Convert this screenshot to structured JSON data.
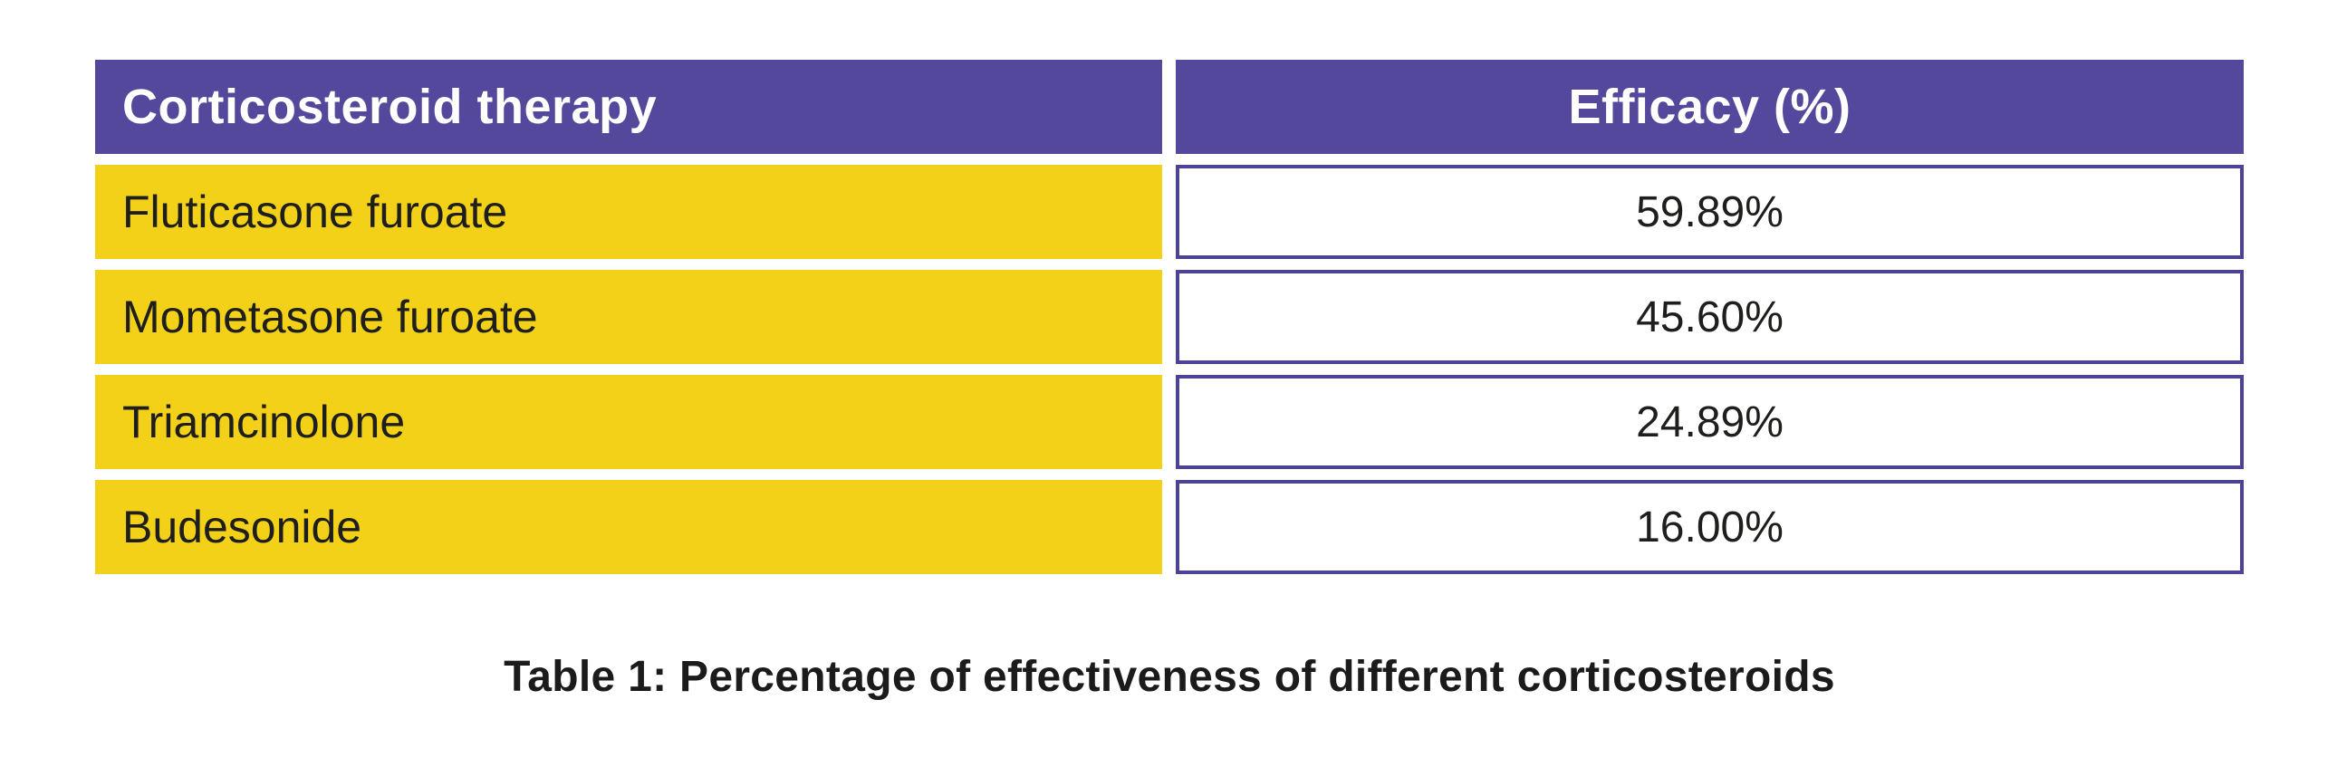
{
  "chart_data": {
    "type": "table",
    "title": "Table 1: Percentage of effectiveness of different corticosteroids",
    "columns": [
      "Corticosteroid therapy",
      "Efficacy (%)"
    ],
    "rows": [
      [
        "Fluticasone furoate",
        "59.89%"
      ],
      [
        "Mometasone furoate",
        "45.60%"
      ],
      [
        "Triamcinolone",
        "24.89%"
      ],
      [
        "Budesonide",
        "16.00%"
      ]
    ],
    "efficacy_values_percent": [
      59.89,
      45.6,
      24.89,
      16.0
    ]
  },
  "table": {
    "header": {
      "therapy": "Corticosteroid therapy",
      "efficacy": "Efficacy (%)"
    },
    "rows": [
      {
        "therapy": "Fluticasone furoate",
        "efficacy": "59.89%"
      },
      {
        "therapy": "Mometasone furoate",
        "efficacy": "45.60%"
      },
      {
        "therapy": "Triamcinolone",
        "efficacy": "24.89%"
      },
      {
        "therapy": "Budesonide",
        "efficacy": "16.00%"
      }
    ]
  },
  "caption": "Table 1: Percentage of effectiveness of different corticosteroids",
  "colors": {
    "header_bg": "#53489B",
    "row_bg": "#F2D118",
    "value_border": "#4D4394",
    "header_text": "#FFFFFF",
    "body_text": "#1E1E1C"
  }
}
